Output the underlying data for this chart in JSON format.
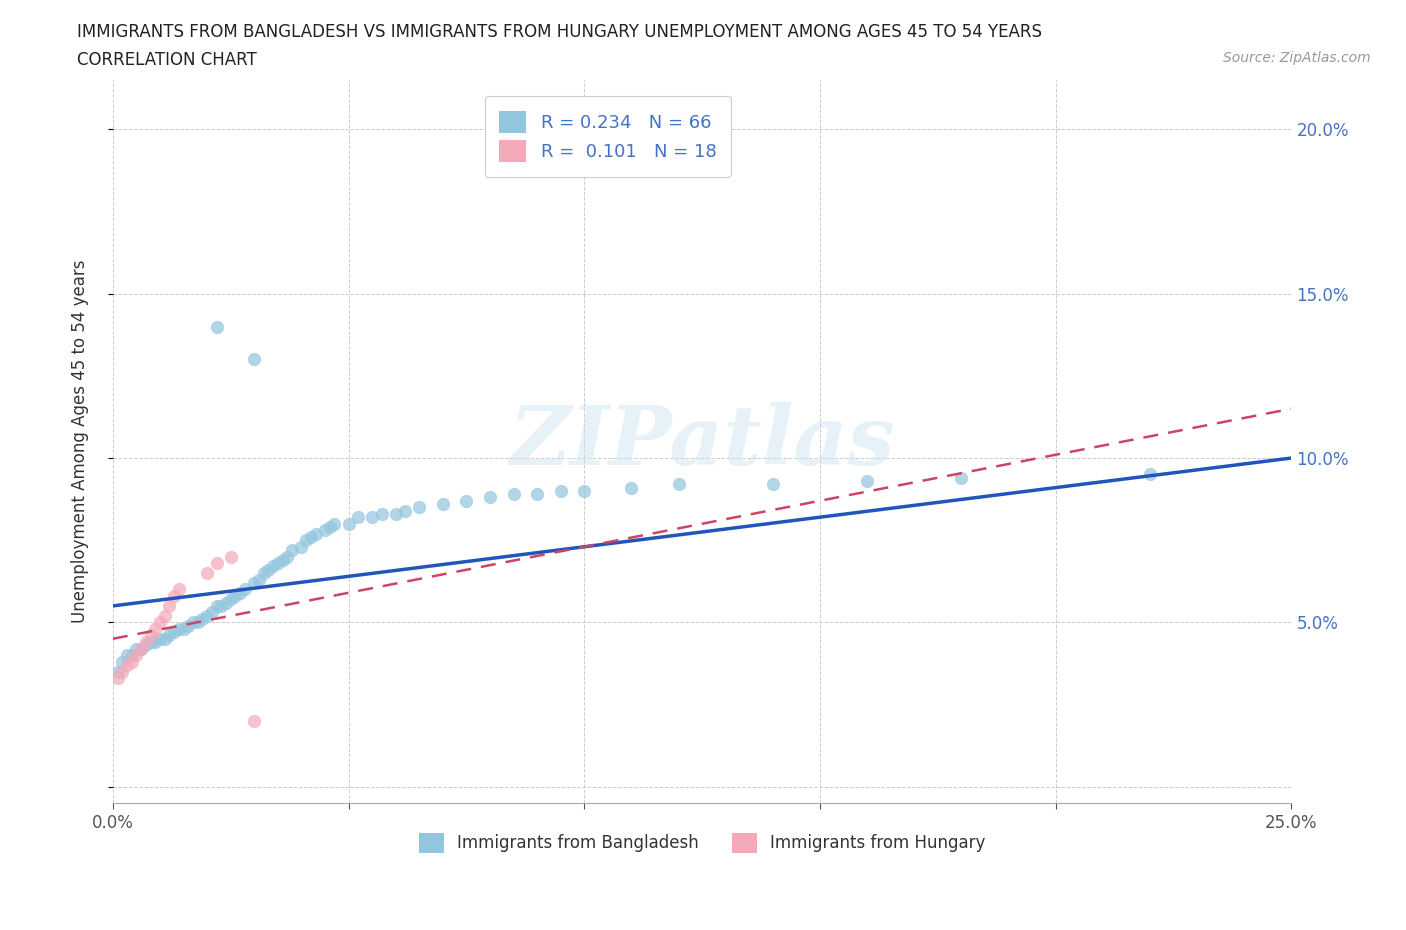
{
  "title_line1": "IMMIGRANTS FROM BANGLADESH VS IMMIGRANTS FROM HUNGARY UNEMPLOYMENT AMONG AGES 45 TO 54 YEARS",
  "title_line2": "CORRELATION CHART",
  "source_text": "Source: ZipAtlas.com",
  "ylabel": "Unemployment Among Ages 45 to 54 years",
  "xlim": [
    0.0,
    0.25
  ],
  "ylim": [
    -0.005,
    0.215
  ],
  "xticks": [
    0.0,
    0.05,
    0.1,
    0.15,
    0.2,
    0.25
  ],
  "yticks": [
    0.0,
    0.05,
    0.1,
    0.15,
    0.2
  ],
  "xticklabels": [
    "0.0%",
    "",
    "",
    "",
    "",
    "25.0%"
  ],
  "yticklabels_right": [
    "",
    "5.0%",
    "10.0%",
    "15.0%",
    "20.0%"
  ],
  "color_bangladesh": "#92C5DE",
  "color_hungary": "#F4A9B8",
  "trendline_bangladesh_color": "#2255BB",
  "trendline_hungary_color": "#CC4466",
  "watermark_text": "ZIPatlas",
  "legend_bangladesh_label": "Immigrants from Bangladesh",
  "legend_hungary_label": "Immigrants from Hungary",
  "R_bangladesh": 0.234,
  "N_bangladesh": 66,
  "R_hungary": 0.101,
  "N_hungary": 18,
  "bangladesh_x": [
    0.001,
    0.002,
    0.003,
    0.004,
    0.005,
    0.006,
    0.007,
    0.008,
    0.009,
    0.01,
    0.011,
    0.012,
    0.013,
    0.014,
    0.015,
    0.016,
    0.017,
    0.018,
    0.019,
    0.02,
    0.021,
    0.022,
    0.023,
    0.024,
    0.025,
    0.026,
    0.027,
    0.028,
    0.03,
    0.031,
    0.032,
    0.033,
    0.034,
    0.035,
    0.036,
    0.037,
    0.038,
    0.04,
    0.041,
    0.042,
    0.043,
    0.045,
    0.046,
    0.047,
    0.05,
    0.052,
    0.055,
    0.057,
    0.06,
    0.062,
    0.065,
    0.07,
    0.075,
    0.08,
    0.085,
    0.09,
    0.095,
    0.1,
    0.11,
    0.12,
    0.14,
    0.16,
    0.18,
    0.22,
    0.022,
    0.03
  ],
  "bangladesh_y": [
    0.035,
    0.038,
    0.04,
    0.04,
    0.042,
    0.042,
    0.043,
    0.044,
    0.044,
    0.045,
    0.045,
    0.046,
    0.047,
    0.048,
    0.048,
    0.049,
    0.05,
    0.05,
    0.051,
    0.052,
    0.053,
    0.055,
    0.055,
    0.056,
    0.057,
    0.058,
    0.059,
    0.06,
    0.062,
    0.063,
    0.065,
    0.066,
    0.067,
    0.068,
    0.069,
    0.07,
    0.072,
    0.073,
    0.075,
    0.076,
    0.077,
    0.078,
    0.079,
    0.08,
    0.08,
    0.082,
    0.082,
    0.083,
    0.083,
    0.084,
    0.085,
    0.086,
    0.087,
    0.088,
    0.089,
    0.089,
    0.09,
    0.09,
    0.091,
    0.092,
    0.092,
    0.093,
    0.094,
    0.095,
    0.14,
    0.13
  ],
  "hungary_x": [
    0.001,
    0.002,
    0.003,
    0.004,
    0.005,
    0.006,
    0.007,
    0.008,
    0.009,
    0.01,
    0.011,
    0.012,
    0.013,
    0.014,
    0.02,
    0.022,
    0.025,
    0.03
  ],
  "hungary_y": [
    0.033,
    0.035,
    0.037,
    0.038,
    0.04,
    0.042,
    0.044,
    0.046,
    0.048,
    0.05,
    0.052,
    0.055,
    0.058,
    0.06,
    0.065,
    0.068,
    0.07,
    0.02
  ]
}
